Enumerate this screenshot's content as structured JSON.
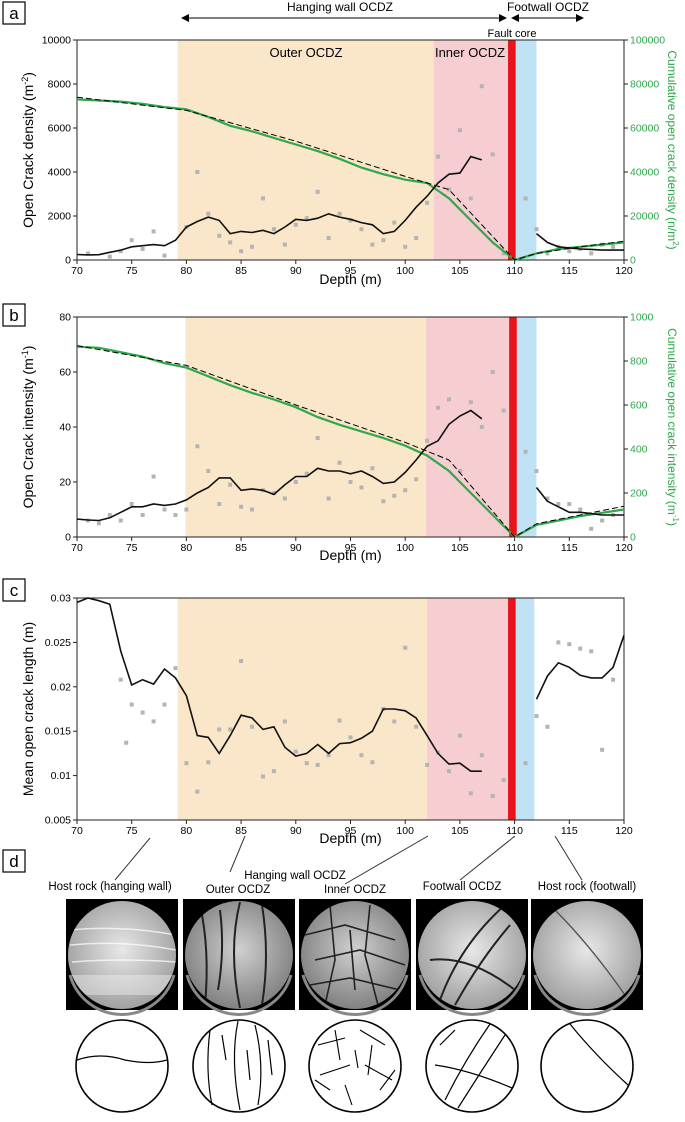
{
  "figure": {
    "panel_labels": [
      "a",
      "b",
      "c",
      "d"
    ],
    "zone_labels": {
      "hanging_wall": "Hanging wall OCDZ",
      "footwall": "Footwall OCDZ",
      "outer": "Outer OCDZ",
      "inner": "Inner OCDZ",
      "fault_core": "Fault core"
    },
    "colors": {
      "outer_zone": "#fae6c8",
      "inner_zone": "#f6cdd0",
      "footwall_zone": "#bfe2f5",
      "fault_core": "#e8141c",
      "moving_avg": "#111111",
      "raw_points": "#b4b4b4",
      "cumulative": "#2fa84a",
      "cumulative_axis": "#2fa84a"
    }
  },
  "chart_data": [
    {
      "type": "scatter",
      "panel": "a",
      "xlabel": "Depth (m)",
      "ylabel": "Open Crack density",
      "ylabel_unit": "(m",
      "ylabel_sup": "-2",
      "y2label": "Cumulative  open crack density (n/m",
      "y2label_sup": "2",
      "xlim": [
        70,
        120
      ],
      "ylim": [
        0,
        10000
      ],
      "y2lim": [
        0,
        100000
      ],
      "xticks": [
        "70",
        "75",
        "80",
        "85",
        "90",
        "95",
        "100",
        "105",
        "110",
        "115",
        "120"
      ],
      "yticks": [
        "0",
        "2000",
        "4000",
        "6000",
        "8000",
        "10000"
      ],
      "y2ticks": [
        "0",
        "20000",
        "40000",
        "60000",
        "80000",
        "100000"
      ],
      "raw_points": {
        "x": [
          71,
          73,
          74,
          75,
          76,
          77,
          78,
          80,
          81,
          82,
          83,
          84,
          85,
          86,
          87,
          88,
          89,
          90,
          91,
          92,
          93,
          94,
          95,
          96,
          97,
          98,
          99,
          100,
          101,
          102,
          103,
          104,
          105,
          106,
          107,
          108,
          109,
          111,
          112,
          113,
          114,
          115,
          116,
          117,
          118,
          119
        ],
        "y": [
          300,
          150,
          400,
          900,
          500,
          1300,
          200,
          1500,
          4000,
          2100,
          1100,
          800,
          400,
          600,
          2800,
          1400,
          700,
          1600,
          1900,
          3100,
          1000,
          2100,
          1800,
          1400,
          700,
          900,
          1700,
          600,
          1000,
          2600,
          4700,
          3200,
          5900,
          2800,
          7900,
          4800,
          300,
          2800,
          1400,
          300,
          600,
          400,
          500,
          300,
          700,
          600
        ]
      },
      "moving_average": [
        {
          "x": [
            70,
            71,
            72,
            73,
            74,
            75,
            76,
            77,
            78,
            79,
            80,
            81,
            82,
            83,
            84,
            85,
            86,
            87,
            88,
            89,
            90,
            91,
            92,
            93,
            94,
            95,
            96,
            97,
            98,
            99,
            100,
            101,
            102,
            103,
            104,
            105,
            106,
            107
          ],
          "y": [
            250,
            230,
            240,
            350,
            450,
            600,
            650,
            700,
            650,
            900,
            1500,
            1750,
            1950,
            1800,
            1200,
            1300,
            1250,
            1350,
            1200,
            1500,
            1850,
            1800,
            1900,
            2100,
            1950,
            1850,
            1700,
            1600,
            1200,
            1300,
            1800,
            2400,
            2900,
            3500,
            3900,
            3950,
            4700,
            4550
          ]
        },
        {
          "x": [
            112,
            113,
            114,
            115,
            116,
            117,
            118,
            119,
            120
          ],
          "y": [
            1200,
            800,
            600,
            550,
            500,
            480,
            450,
            450,
            450
          ]
        }
      ],
      "cumulative": {
        "x": [
          70,
          72,
          74,
          76,
          78,
          80,
          82,
          84,
          86,
          88,
          90,
          92,
          94,
          96,
          98,
          100,
          102,
          104,
          106,
          108,
          110,
          112,
          114,
          116,
          118,
          120
        ],
        "y": [
          73000,
          72500,
          72000,
          71000,
          69500,
          68500,
          65000,
          61000,
          58500,
          55500,
          52500,
          49500,
          46000,
          42000,
          39000,
          36500,
          35000,
          28000,
          18000,
          8000,
          0,
          3000,
          5000,
          6000,
          7000,
          8000
        ]
      },
      "trend": {
        "x": [
          70,
          80,
          90,
          100,
          104,
          110,
          112,
          116,
          120
        ],
        "y": [
          74000,
          68000,
          54000,
          38000,
          32000,
          0,
          3000,
          6000,
          8500
        ]
      },
      "zones": {
        "outer": [
          79.2,
          102.6
        ],
        "inner": [
          102.6,
          109.4
        ],
        "core": [
          109.4,
          110.1
        ],
        "footwall": [
          110.1,
          112
        ]
      }
    },
    {
      "type": "scatter",
      "panel": "b",
      "xlabel": "Depth (m)",
      "ylabel": "Open Crack intensity",
      "ylabel_unit": "(m",
      "ylabel_sup": "-1",
      "y2label": "Cumulative  open crack intensity (m",
      "y2label_sup": "-1",
      "xlim": [
        70,
        120
      ],
      "ylim": [
        0,
        80
      ],
      "y2lim": [
        0,
        1000
      ],
      "xticks": [
        "70",
        "75",
        "80",
        "85",
        "90",
        "95",
        "100",
        "105",
        "110",
        "115",
        "120"
      ],
      "yticks": [
        "0",
        "20",
        "40",
        "60",
        "80"
      ],
      "y2ticks": [
        "0",
        "200",
        "400",
        "600",
        "800",
        "1000"
      ],
      "raw_points": {
        "x": [
          71,
          72,
          73,
          74,
          75,
          76,
          77,
          78,
          79,
          80,
          81,
          82,
          83,
          84,
          85,
          86,
          87,
          88,
          89,
          90,
          91,
          92,
          93,
          94,
          95,
          96,
          97,
          98,
          99,
          100,
          101,
          102,
          103,
          104,
          105,
          106,
          107,
          108,
          109,
          111,
          112,
          113,
          114,
          115,
          116,
          117,
          118,
          119
        ],
        "y": [
          6,
          5,
          8,
          6,
          12,
          8,
          22,
          10,
          8,
          10,
          33,
          24,
          12,
          19,
          11,
          10,
          17,
          16,
          14,
          20,
          23,
          36,
          14,
          27,
          20,
          18,
          25,
          13,
          15,
          17,
          21,
          35,
          47,
          50,
          24,
          49,
          40,
          60,
          46,
          31,
          24,
          14,
          12,
          12,
          10,
          3,
          6,
          8
        ]
      },
      "moving_average": [
        {
          "x": [
            70,
            71,
            72,
            73,
            74,
            75,
            76,
            77,
            78,
            79,
            80,
            81,
            82,
            83,
            84,
            85,
            86,
            87,
            88,
            89,
            90,
            91,
            92,
            93,
            94,
            95,
            96,
            97,
            98,
            99,
            100,
            101,
            102,
            103,
            104,
            105,
            106,
            107
          ],
          "y": [
            6.5,
            6.2,
            6,
            7,
            9,
            11,
            11,
            12,
            11.5,
            12,
            13.5,
            16,
            18,
            21.5,
            21.5,
            17,
            17.5,
            17,
            15.5,
            19,
            22,
            22,
            25,
            24,
            24,
            23,
            24,
            22,
            19.5,
            20,
            23.5,
            28,
            33,
            35,
            41,
            44,
            46,
            43
          ]
        },
        {
          "x": [
            112,
            113,
            114,
            115,
            116,
            117,
            118,
            119,
            120
          ],
          "y": [
            18,
            13,
            11,
            9,
            9,
            8.5,
            8,
            8,
            8
          ]
        }
      ],
      "cumulative": {
        "x": [
          70,
          72,
          74,
          76,
          78,
          80,
          82,
          84,
          86,
          88,
          90,
          92,
          94,
          96,
          98,
          100,
          102,
          104,
          106,
          108,
          110,
          112,
          114,
          116,
          118,
          120
        ],
        "y": [
          865,
          860,
          840,
          820,
          790,
          770,
          730,
          690,
          655,
          625,
          590,
          545,
          510,
          480,
          450,
          415,
          370,
          300,
          200,
          100,
          0,
          55,
          75,
          95,
          110,
          125
        ]
      },
      "trend": {
        "x": [
          70,
          80,
          90,
          100,
          104,
          110,
          112,
          116,
          120
        ],
        "y": [
          870,
          780,
          600,
          430,
          350,
          0,
          60,
          100,
          140
        ]
      },
      "zones": {
        "outer": [
          79.9,
          101.9
        ],
        "inner": [
          101.9,
          109.5
        ],
        "core": [
          109.5,
          110.2
        ],
        "footwall": [
          110.2,
          112
        ]
      }
    },
    {
      "type": "scatter",
      "panel": "c",
      "xlabel": "Depth (m)",
      "ylabel": "Mean open crack length (m)",
      "xlim": [
        70,
        120
      ],
      "ylim": [
        0.005,
        0.03
      ],
      "xticks": [
        "70",
        "75",
        "80",
        "85",
        "90",
        "95",
        "100",
        "105",
        "110",
        "115",
        "120"
      ],
      "yticks": [
        "0.005",
        "0.01",
        "0.015",
        "0.02",
        "0.025",
        "0.03"
      ],
      "raw_points": {
        "x": [
          74,
          74.5,
          75,
          76,
          77,
          78,
          79,
          80,
          81,
          82,
          83,
          84,
          85,
          86,
          87,
          88,
          89,
          90,
          91,
          92,
          93,
          94,
          95,
          96,
          97,
          98,
          99,
          100,
          101,
          102,
          103,
          104,
          105,
          106,
          107,
          108,
          109,
          111,
          112,
          113,
          114,
          115,
          116,
          117,
          118,
          119
        ],
        "y": [
          0.0208,
          0.0137,
          0.018,
          0.0171,
          0.0161,
          0.018,
          0.0221,
          0.0114,
          0.0082,
          0.0115,
          0.0152,
          0.0152,
          0.0229,
          0.0155,
          0.0099,
          0.0105,
          0.0161,
          0.0127,
          0.0114,
          0.0112,
          0.0123,
          0.0162,
          0.0143,
          0.0123,
          0.0115,
          0.0175,
          0.0161,
          0.0244,
          0.0155,
          0.0112,
          0.0126,
          0.0105,
          0.0145,
          0.008,
          0.0123,
          0.0077,
          0.0095,
          0.0114,
          0.0167,
          0.0155,
          0.025,
          0.0248,
          0.0243,
          0.024,
          0.0129,
          0.0208
        ]
      },
      "moving_average": [
        {
          "x": [
            70,
            71,
            72,
            73,
            74,
            75,
            76,
            77,
            78,
            79,
            80,
            81,
            82,
            83,
            84,
            85,
            86,
            87,
            88,
            89,
            90,
            91,
            92,
            93,
            94,
            95,
            96,
            97,
            98,
            99,
            100,
            101,
            102,
            103,
            104,
            105,
            106,
            107
          ],
          "y": [
            0.0295,
            0.03,
            0.0297,
            0.0293,
            0.024,
            0.0202,
            0.0208,
            0.0203,
            0.022,
            0.021,
            0.019,
            0.0145,
            0.0143,
            0.0125,
            0.0145,
            0.0168,
            0.0165,
            0.0152,
            0.0155,
            0.0132,
            0.0122,
            0.0125,
            0.0135,
            0.0125,
            0.0136,
            0.0137,
            0.0142,
            0.015,
            0.0175,
            0.0175,
            0.0173,
            0.0165,
            0.0145,
            0.0125,
            0.0113,
            0.0114,
            0.0105,
            0.0105
          ]
        },
        {
          "x": [
            112,
            113,
            114,
            115,
            116,
            117,
            118,
            119,
            120
          ],
          "y": [
            0.0186,
            0.0212,
            0.0227,
            0.0222,
            0.0213,
            0.021,
            0.021,
            0.0222,
            0.0258
          ]
        }
      ],
      "zones": {
        "outer": [
          79.2,
          102
        ],
        "inner": [
          102,
          109.4
        ],
        "core": [
          109.4,
          110.1
        ],
        "footwall": [
          110.1,
          111.8
        ]
      }
    }
  ],
  "panel_d": {
    "hanging_wall_title": "Hanging wall OCDZ",
    "samples": [
      {
        "label": "Host rock (hanging wall)",
        "pointer_depth": 77.5
      },
      {
        "label": "Outer OCDZ",
        "pointer_depth": 88
      },
      {
        "label": "Inner OCDZ",
        "pointer_depth": 105
      },
      {
        "label": "Footwall OCDZ",
        "pointer_depth": 111
      },
      {
        "label": "Host rock (footwall)",
        "pointer_depth": 115
      }
    ]
  }
}
